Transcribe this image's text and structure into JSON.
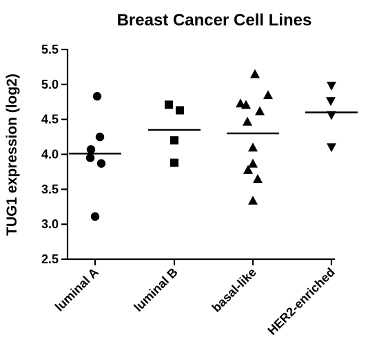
{
  "chart_data": {
    "type": "scatter",
    "title": "Breast Cancer Cell Lines",
    "xlabel": "",
    "ylabel": "TUG1 expression (log2)",
    "ylim": [
      2.5,
      5.5
    ],
    "yticks": [
      "2.5",
      "3.0",
      "3.5",
      "4.0",
      "4.5",
      "5.0",
      "5.5"
    ],
    "grid": false,
    "categories": [
      "luminal A",
      "luminal B",
      "basal-like",
      "HER2-enriched"
    ],
    "series": [
      {
        "category": "luminal A",
        "marker": "circle",
        "mean": 4.01,
        "points": [
          4.83,
          4.25,
          4.07,
          3.95,
          3.87,
          3.11
        ]
      },
      {
        "category": "luminal B",
        "marker": "square",
        "mean": 4.35,
        "points": [
          4.71,
          4.63,
          4.2,
          3.88
        ]
      },
      {
        "category": "basal-like",
        "marker": "triangle-up",
        "mean": 4.3,
        "points": [
          5.15,
          4.85,
          4.73,
          4.71,
          4.62,
          4.47,
          4.1,
          3.87,
          3.78,
          3.65,
          3.34
        ]
      },
      {
        "category": "HER2-enriched",
        "marker": "triangle-down",
        "mean": 4.6,
        "points": [
          4.98,
          4.76,
          4.56,
          4.1
        ]
      }
    ]
  }
}
